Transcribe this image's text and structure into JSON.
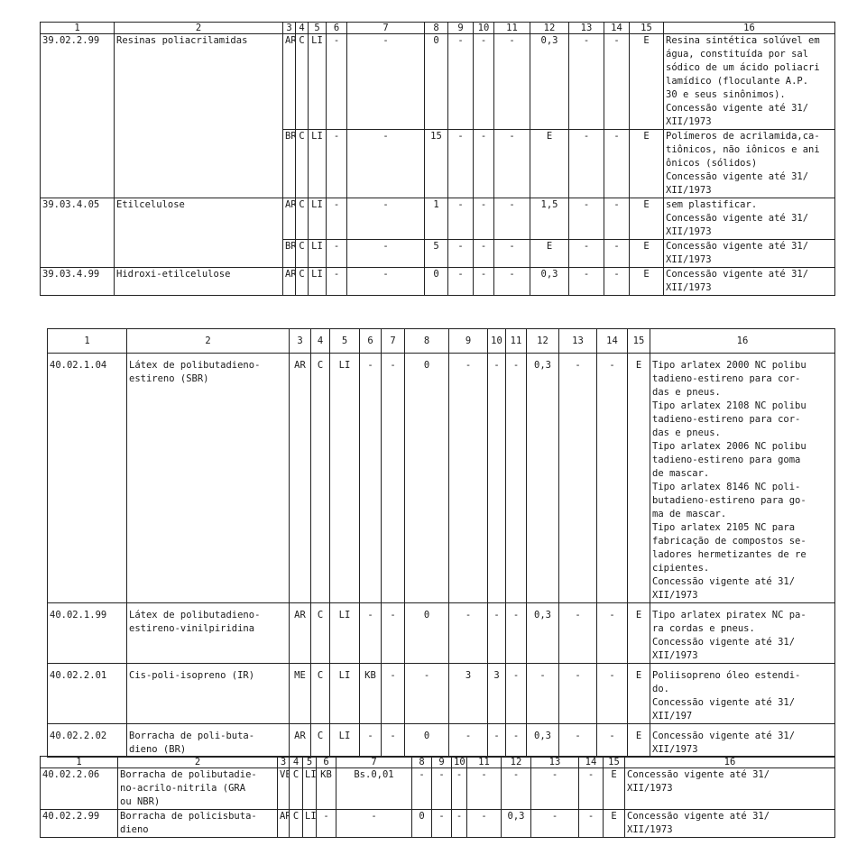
{
  "headers": [
    "1",
    "2",
    "3",
    "4",
    "5",
    "6",
    "7",
    "8",
    "9",
    "10",
    "11",
    "12",
    "13",
    "14",
    "15",
    "16"
  ],
  "tables": [
    {
      "groups": [
        {
          "code": "39.02.2.99",
          "name": "Resinas poliacrilamidas",
          "rows": [
            [
              "AR",
              "C",
              "LI",
              "-",
              "-",
              "0",
              "-",
              "-",
              "-",
              "0,3",
              "-",
              "-",
              "E",
              "Resina sintética solúvel em\nágua, constituída por sal\nsódico de um ácido poliacri\nlamídico (floculante A.P.\n30 e seus sinônimos).\nConcessão vigente até 31/\nXII/1973"
            ],
            [
              "BR",
              "C",
              "LI",
              "-",
              "-",
              "15",
              "-",
              "-",
              "-",
              "E",
              "-",
              "-",
              "E",
              "Polímeros de acrilamida,ca-\ntiônicos, não iônicos e ani\nônicos (sólidos)\nConcessão vigente até 31/\nXII/1973"
            ]
          ]
        },
        {
          "code": "39.03.4.05",
          "name": "Etilcelulose",
          "rows": [
            [
              "AR",
              "C",
              "LI",
              "-",
              "-",
              "1",
              "-",
              "-",
              "-",
              "1,5",
              "-",
              "-",
              "E",
              "sem plastificar.\nConcessão vigente até 31/\nXII/1973"
            ],
            [
              "BR",
              "C",
              "LI",
              "-",
              "-",
              "5",
              "-",
              "-",
              "-",
              "E",
              "-",
              "-",
              "E",
              "Concessão vigente até 31/\nXII/1973"
            ]
          ]
        },
        {
          "code": "39.03.4.99",
          "name": "Hidroxi-etilcelulose",
          "rows": [
            [
              "AR",
              "C",
              "LI",
              "-",
              "-",
              "0",
              "-",
              "-",
              "-",
              "0,3",
              "-",
              "-",
              "E",
              "Concessão vigente até 31/\nXII/1973"
            ]
          ]
        }
      ]
    },
    {
      "groups": [
        {
          "code": "40.02.1.04",
          "name": "Látex de polibutadieno-\nestireno (SBR)",
          "rows": [
            [
              "AR",
              "C",
              "LI",
              "-",
              "-",
              "0",
              "-",
              "-",
              "-",
              "0,3",
              "-",
              "-",
              "E",
              "Tipo arlatex 2000 NC polibu\ntadieno-estireno para cor-\ndas e pneus.\nTipo arlatex 2108 NC polibu\ntadieno-estireno para cor-\ndas e pneus.\nTipo arlatex 2006 NC polibu\ntadieno-estireno para goma\nde mascar.\nTipo arlatex 8146 NC poli-\nbutadieno-estireno para go-\nma de mascar.\nTipo arlatex 2105 NC para\nfabricação de compostos se-\nladores hermetizantes de re\ncipientes.\nConcessão vigente até 31/\nXII/1973"
            ]
          ]
        },
        {
          "code": "40.02.1.99",
          "name": "Látex de polibutadieno-\nestireno-vinilpiridina",
          "rows": [
            [
              "AR",
              "C",
              "LI",
              "-",
              "-",
              "0",
              "-",
              "-",
              "-",
              "0,3",
              "-",
              "-",
              "E",
              "Tipo arlatex piratex NC pa-\nra cordas e pneus.\nConcessão vigente até 31/\nXII/1973"
            ]
          ]
        },
        {
          "code": "40.02.2.01",
          "name": "Cis-poli-isopreno (IR)",
          "rows": [
            [
              "ME",
              "C",
              "LI",
              "KB",
              "-",
              "-",
              "3",
              "3",
              "-",
              "-",
              "-",
              "-",
              "E",
              "Poliisopreno óleo estendi-\ndo.\nConcessão vigente até 31/\nXII/197"
            ]
          ]
        },
        {
          "code": "40.02.2.02",
          "name": "Borracha de poli-buta-\ndieno (BR)",
          "rows": [
            [
              "AR",
              "C",
              "LI",
              "-",
              "-",
              "0",
              "-",
              "-",
              "-",
              "0,3",
              "-",
              "-",
              "E",
              "Concessão vigente até 31/\nXII/1973"
            ]
          ]
        }
      ]
    },
    {
      "groups": [
        {
          "code": "40.02.2.06",
          "name": "Borracha de polibutadie-\nno-acrilo-nitrila (GRA\nou NBR)",
          "rows": [
            [
              "VE",
              "C",
              "LI",
              "KB",
              "Bs.0,01",
              "-",
              "-",
              "-",
              "-",
              "-",
              "-",
              "-",
              "E",
              "Concessão vigente até 31/\nXII/1973"
            ]
          ]
        },
        {
          "code": "40.02.2.99",
          "name": "Borracha de policisbuta-\ndieno",
          "rows": [
            [
              "AR",
              "C",
              "LI",
              "-",
              "-",
              "0",
              "-",
              "-",
              "-",
              "0,3",
              "-",
              "-",
              "E",
              "Concessão vigente até 31/\nXII/1973"
            ]
          ]
        }
      ]
    }
  ]
}
